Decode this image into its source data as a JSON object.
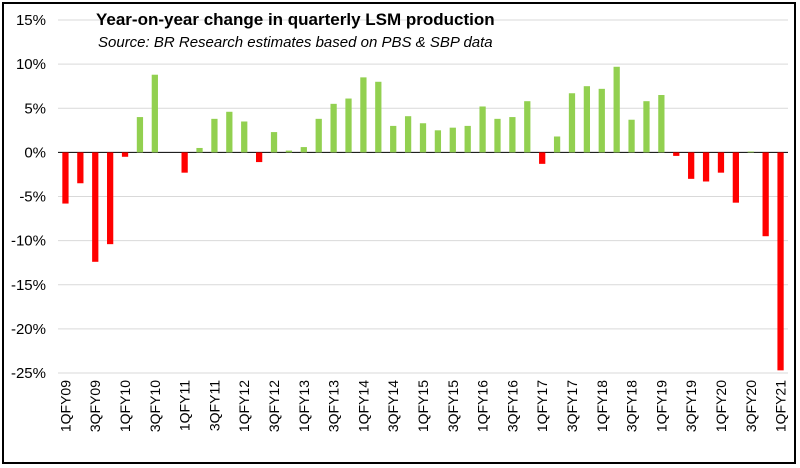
{
  "chart_data": {
    "type": "bar",
    "title": "Year-on-year change in quarterly LSM production",
    "subtitle": "Source: BR Research estimates based on PBS & SBP data",
    "xlabel": "",
    "ylabel": "",
    "ylim": [
      -25,
      15
    ],
    "yticks": [
      "15%",
      "10%",
      "5%",
      "0%",
      "-5%",
      "-10%",
      "-15%",
      "-20%",
      "-25%"
    ],
    "ytick_values": [
      15,
      10,
      5,
      0,
      -5,
      -10,
      -15,
      -20,
      -25
    ],
    "grid": true,
    "colors": {
      "positive": "#92d050",
      "negative": "#ff0000"
    },
    "categories": [
      "1QFY09",
      "2QFY09",
      "3QFY09",
      "4QFY09",
      "1QFY10",
      "2QFY10",
      "3QFY10",
      "4QFY10",
      "1QFY11",
      "2QFY11",
      "3QFY11",
      "4QFY11",
      "1QFY12",
      "2QFY12",
      "3QFY12",
      "4QFY12",
      "1QFY13",
      "2QFY13",
      "3QFY13",
      "4QFY13",
      "1QFY14",
      "2QFY14",
      "3QFY14",
      "4QFY14",
      "1QFY15",
      "2QFY15",
      "3QFY15",
      "4QFY15",
      "1QFY16",
      "2QFY16",
      "3QFY16",
      "4QFY16",
      "1QFY17",
      "2QFY17",
      "3QFY17",
      "4QFY17",
      "1QFY18",
      "2QFY18",
      "3QFY18",
      "4QFY18",
      "1QFY19",
      "2QFY19",
      "3QFY19",
      "4QFY19",
      "1QFY20",
      "2QFY20",
      "3QFY20",
      "4QFY20",
      "1QFY21"
    ],
    "shown_tick_labels": [
      "1QFY09",
      "3QFY09",
      "1QFY10",
      "3QFY10",
      "1QFY11",
      "3QFY11",
      "1QFY12",
      "3QFY12",
      "1QFY13",
      "3QFY13",
      "1QFY14",
      "3QFY14",
      "1QFY15",
      "3QFY15",
      "1QFY16",
      "3QFY16",
      "1QFY17",
      "3QFY17",
      "1QFY18",
      "3QFY18",
      "1QFY19",
      "3QFY19",
      "1QFY20",
      "3QFY20",
      "1QFY21"
    ],
    "values": [
      -5.8,
      -3.5,
      -12.4,
      -10.4,
      -0.5,
      4.0,
      8.8,
      null,
      -2.3,
      0.5,
      3.8,
      4.6,
      3.5,
      -1.1,
      2.3,
      0.2,
      0.6,
      3.8,
      5.5,
      6.1,
      8.5,
      8.0,
      3.0,
      4.1,
      3.3,
      2.5,
      2.8,
      3.0,
      5.2,
      3.8,
      4.0,
      5.8,
      -1.3,
      1.8,
      6.7,
      7.5,
      7.2,
      9.7,
      3.7,
      5.8,
      6.5,
      -0.4,
      -3.0,
      -3.3,
      -2.3,
      -5.7,
      0.1,
      -9.5,
      -24.7
    ]
  }
}
